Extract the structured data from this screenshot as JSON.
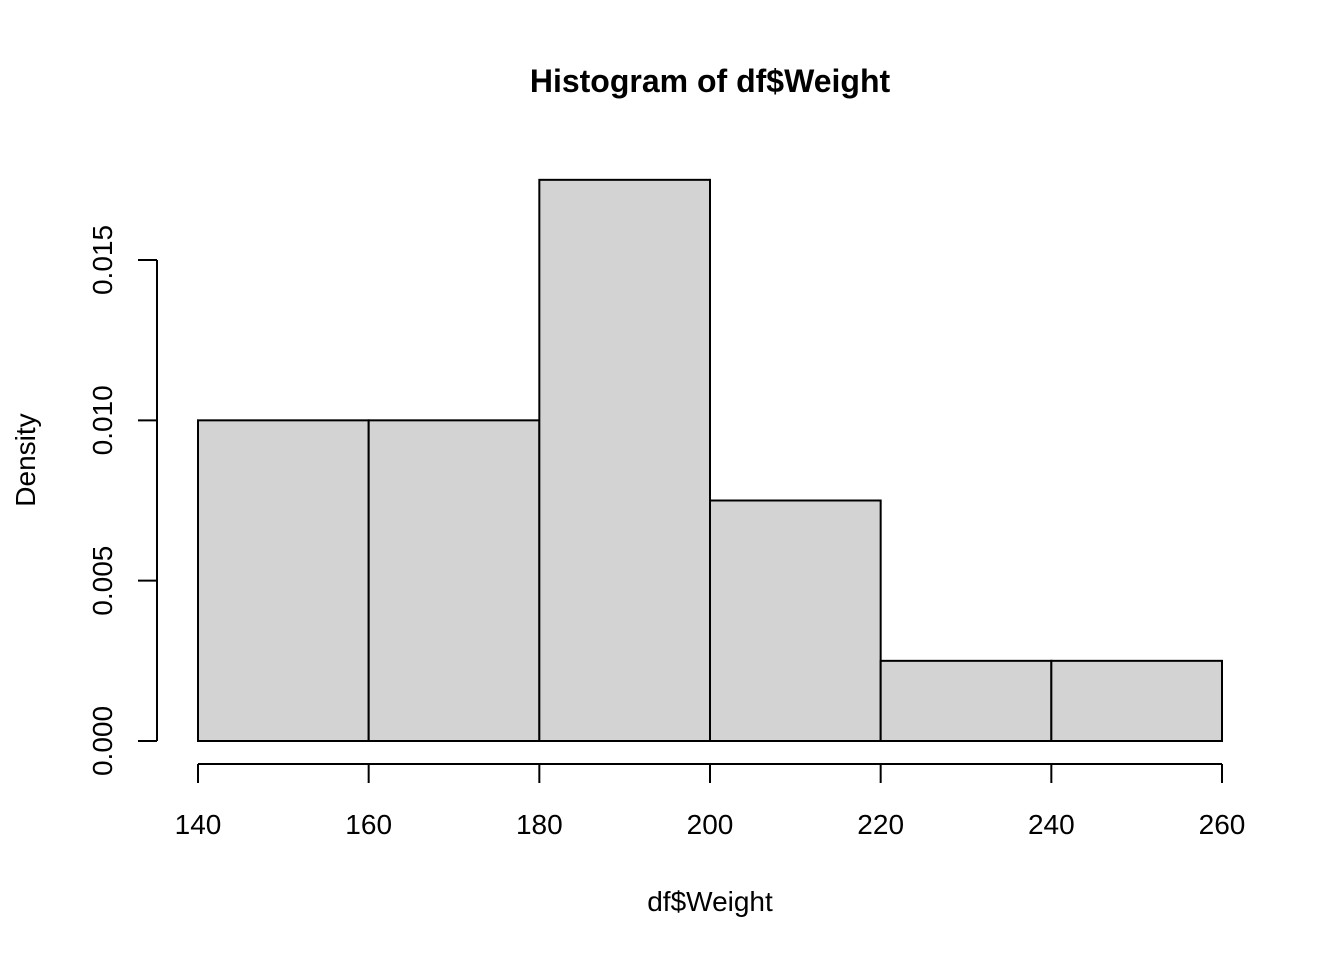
{
  "chart_data": {
    "type": "bar",
    "title": "Histogram of df$Weight",
    "xlabel": "df$Weight",
    "ylabel": "Density",
    "bins": [
      {
        "from": 140,
        "to": 160,
        "density": 0.01
      },
      {
        "from": 160,
        "to": 180,
        "density": 0.01
      },
      {
        "from": 180,
        "to": 200,
        "density": 0.0175
      },
      {
        "from": 200,
        "to": 220,
        "density": 0.0075
      },
      {
        "from": 220,
        "to": 240,
        "density": 0.0025
      },
      {
        "from": 240,
        "to": 260,
        "density": 0.0025
      }
    ],
    "xlim": [
      140,
      260
    ],
    "ylim": [
      0,
      0.015
    ],
    "x_ticks": [
      {
        "value": 140,
        "label": "140"
      },
      {
        "value": 160,
        "label": "160"
      },
      {
        "value": 180,
        "label": "180"
      },
      {
        "value": 200,
        "label": "200"
      },
      {
        "value": 220,
        "label": "220"
      },
      {
        "value": 240,
        "label": "240"
      },
      {
        "value": 260,
        "label": "260"
      }
    ],
    "y_ticks": [
      {
        "value": 0,
        "label": "0.000"
      },
      {
        "value": 0.005,
        "label": "0.005"
      },
      {
        "value": 0.01,
        "label": "0.010"
      },
      {
        "value": 0.015,
        "label": "0.015"
      }
    ],
    "bar_fill": "#d3d3d3",
    "bar_stroke": "#000000",
    "grid": false,
    "legend": "none"
  }
}
